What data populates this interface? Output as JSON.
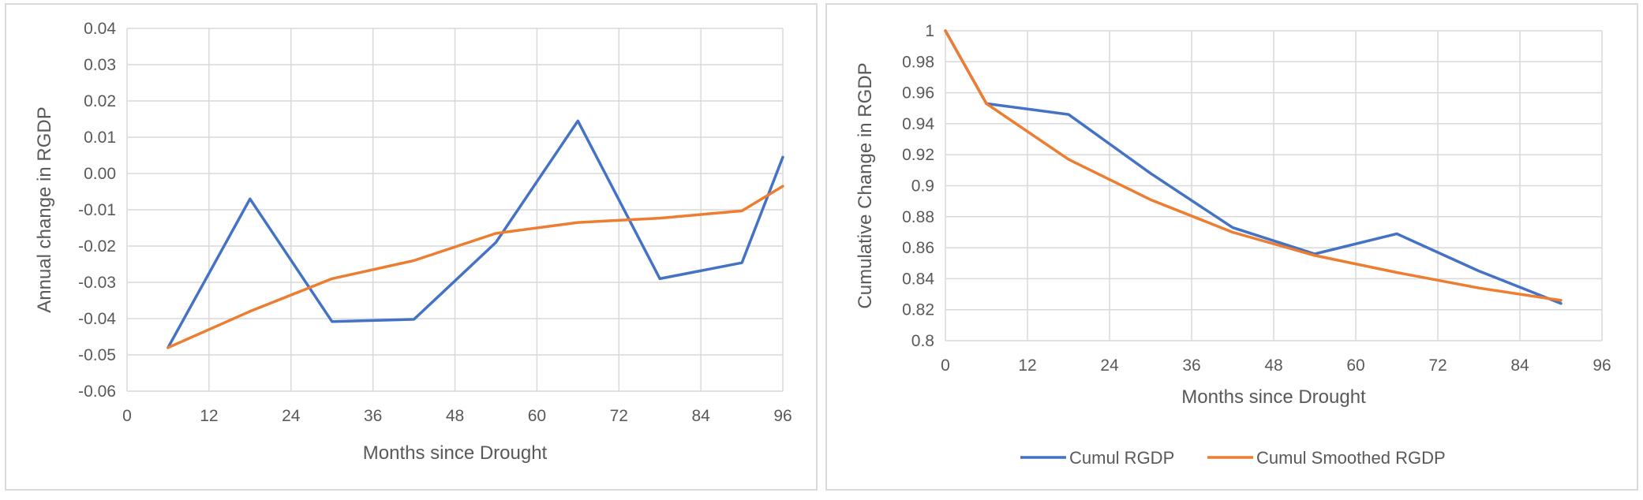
{
  "chart_data": [
    {
      "type": "line",
      "title": "",
      "xlabel": "Months since Drought",
      "ylabel": "Annual change in RGDP",
      "xlim": [
        0,
        96
      ],
      "ylim": [
        -0.06,
        0.04
      ],
      "xticks": [
        0,
        12,
        24,
        36,
        48,
        60,
        72,
        84,
        96
      ],
      "yticks": [
        -0.06,
        -0.05,
        -0.04,
        -0.03,
        -0.02,
        -0.01,
        0.0,
        0.01,
        0.02,
        0.03,
        0.04
      ],
      "ytick_labels": [
        "-0.06",
        "-0.05",
        "-0.04",
        "-0.03",
        "-0.02",
        "-0.01",
        "0.00",
        "0.01",
        "0.02",
        "0.03",
        "0.04"
      ],
      "grid": true,
      "legend": "none",
      "series": [
        {
          "color": "#4472c4",
          "x": [
            6,
            18,
            30,
            42,
            54,
            66,
            78,
            90,
            96
          ],
          "y": [
            -0.048,
            -0.007,
            -0.0408,
            -0.0402,
            -0.019,
            0.0145,
            -0.029,
            -0.0246,
            0.0045
          ]
        },
        {
          "color": "#ed7d31",
          "x": [
            6,
            18,
            30,
            42,
            54,
            66,
            78,
            90,
            96
          ],
          "y": [
            -0.048,
            -0.038,
            -0.029,
            -0.024,
            -0.0165,
            -0.0135,
            -0.0123,
            -0.0103,
            -0.0035
          ]
        }
      ]
    },
    {
      "type": "line",
      "title": "",
      "xlabel": "Months since Drought",
      "ylabel": "Cumulative Change in RGDP",
      "xlim": [
        0,
        96
      ],
      "ylim": [
        0.8,
        1
      ],
      "xticks": [
        0,
        12,
        24,
        36,
        48,
        60,
        72,
        84,
        96
      ],
      "yticks": [
        0.8,
        0.82,
        0.84,
        0.86,
        0.88,
        0.9,
        0.92,
        0.94,
        0.96,
        0.98,
        1
      ],
      "ytick_labels": [
        "0.8",
        "0.82",
        "0.84",
        "0.86",
        "0.88",
        "0.9",
        "0.92",
        "0.94",
        "0.96",
        "0.98",
        "1"
      ],
      "grid": true,
      "legend": "bottom",
      "series": [
        {
          "name": "Cumul RGDP",
          "color": "#4472c4",
          "x": [
            0,
            6,
            18,
            30,
            42,
            54,
            66,
            78,
            90
          ],
          "y": [
            1.0,
            0.953,
            0.946,
            0.908,
            0.873,
            0.856,
            0.869,
            0.845,
            0.824
          ]
        },
        {
          "name": "Cumul Smoothed RGDP",
          "color": "#ed7d31",
          "x": [
            0,
            6,
            18,
            30,
            42,
            54,
            66,
            78,
            90
          ],
          "y": [
            1.0,
            0.953,
            0.917,
            0.891,
            0.87,
            0.855,
            0.844,
            0.834,
            0.826
          ]
        }
      ]
    }
  ]
}
